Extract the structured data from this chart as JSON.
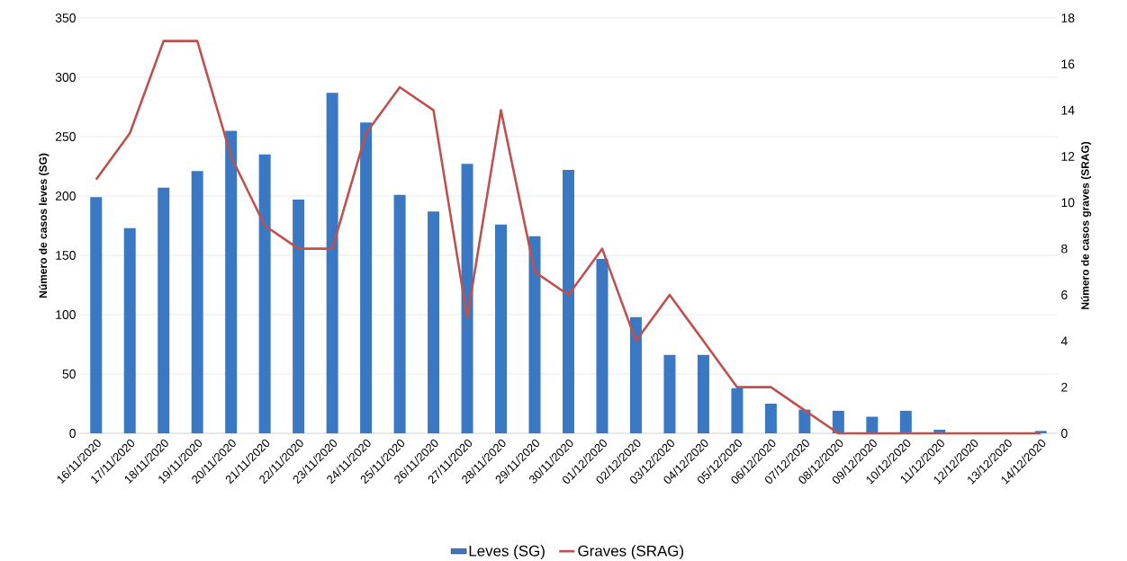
{
  "chart_data": {
    "type": "bar",
    "ylabel": "Número de casos leves (SG)",
    "y2label": "Número de casos graves (SRAG)",
    "categories": [
      "16/11/2020",
      "17/11/2020",
      "18/11/2020",
      "19/11/2020",
      "20/11/2020",
      "21/11/2020",
      "22/11/2020",
      "23/11/2020",
      "24/11/2020",
      "25/11/2020",
      "26/11/2020",
      "27/11/2020",
      "28/11/2020",
      "29/11/2020",
      "30/11/2020",
      "01/12/2020",
      "02/12/2020",
      "03/12/2020",
      "04/12/2020",
      "05/12/2020",
      "06/12/2020",
      "07/12/2020",
      "08/12/2020",
      "09/12/2020",
      "10/12/2020",
      "11/12/2020",
      "12/12/2020",
      "13/12/2020",
      "14/12/2020"
    ],
    "series": [
      {
        "name": "Leves (SG)",
        "color": "#3a78c4",
        "values": [
          199,
          173,
          207,
          221,
          255,
          235,
          197,
          287,
          262,
          201,
          187,
          227,
          176,
          166,
          222,
          147,
          98,
          66,
          66,
          38,
          25,
          20,
          19,
          14,
          19,
          3,
          0,
          0,
          2
        ]
      },
      {
        "name": "Graves (SRAG)",
        "type": "line",
        "axis": "y2",
        "color": "#c0504d",
        "values": [
          11,
          13,
          17,
          17,
          12,
          9,
          8,
          8,
          13,
          15,
          14,
          5,
          14,
          7,
          6,
          8,
          4,
          6,
          4,
          2,
          2,
          1,
          0,
          0,
          0,
          0,
          0,
          0,
          0
        ]
      }
    ],
    "ylim": [
      0,
      350
    ],
    "yticks": [
      0,
      50,
      100,
      150,
      200,
      250,
      300,
      350
    ],
    "y2lim": [
      0,
      18
    ],
    "y2ticks": [
      0,
      2,
      4,
      6,
      8,
      10,
      12,
      14,
      16,
      18
    ],
    "grid": "y",
    "legend": "bottom"
  }
}
